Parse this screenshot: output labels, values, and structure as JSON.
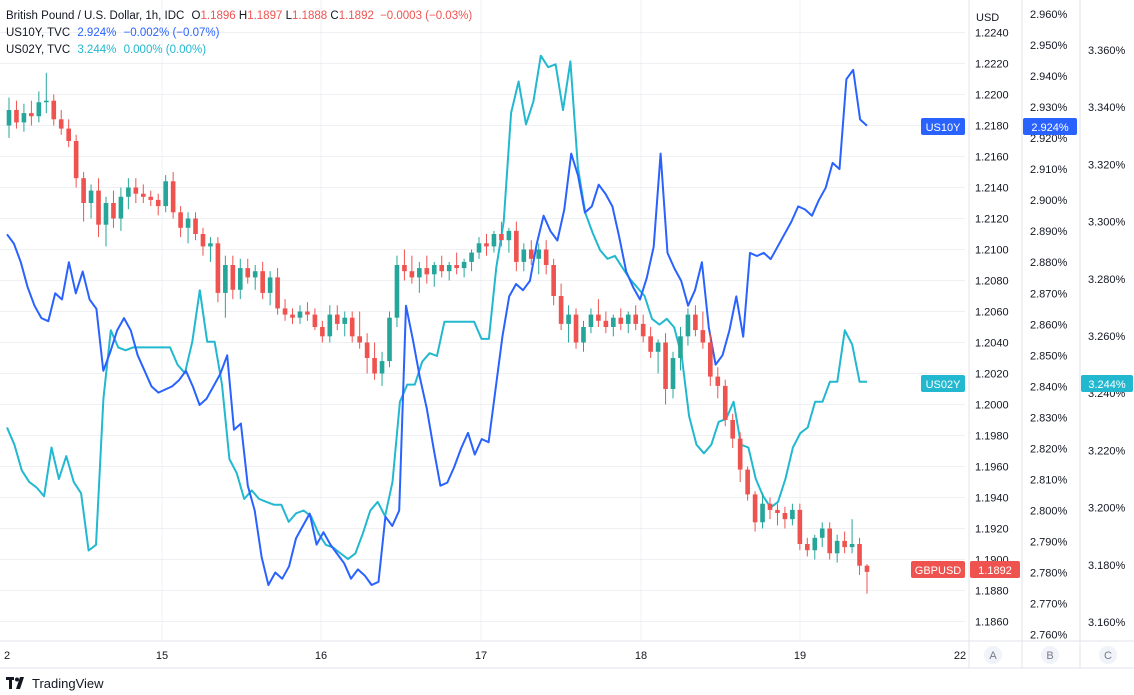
{
  "legend": {
    "pair": {
      "name": "British Pound / U.S. Dollar, 1h, IDC",
      "o_label": "O",
      "o": "1.1896",
      "h_label": "H",
      "h": "1.1897",
      "l_label": "L",
      "l": "1.1888",
      "c_label": "C",
      "c": "1.1892",
      "change": "−0.0003 (−0.03%)"
    },
    "us10": {
      "name": "US10Y, TVC",
      "value": "2.924%",
      "change": "−0.002% (−0.07%)"
    },
    "us02": {
      "name": "US02Y, TVC",
      "value": "3.244%",
      "change": "0.000% (0.00%)"
    }
  },
  "axes": {
    "currency_label": "USD",
    "scale_labels": [
      "A",
      "B",
      "C"
    ],
    "x_ticks": [
      "2",
      "15",
      "16",
      "17",
      "18",
      "19",
      "22"
    ],
    "price_ticks": [
      "1.2240",
      "1.2220",
      "1.2200",
      "1.2180",
      "1.2160",
      "1.2140",
      "1.2120",
      "1.2100",
      "1.2080",
      "1.2060",
      "1.2040",
      "1.2020",
      "1.2000",
      "1.1980",
      "1.1960",
      "1.1940",
      "1.1920",
      "1.1900",
      "1.1880",
      "1.1860"
    ],
    "us10_ticks": [
      "2.960%",
      "2.950%",
      "2.940%",
      "2.930%",
      "2.920%",
      "2.910%",
      "2.900%",
      "2.890%",
      "2.880%",
      "2.870%",
      "2.860%",
      "2.850%",
      "2.840%",
      "2.830%",
      "2.820%",
      "2.810%",
      "2.800%",
      "2.790%",
      "2.780%",
      "2.770%",
      "2.760%"
    ],
    "us02_ticks": [
      "3.360%",
      "3.340%",
      "3.320%",
      "3.300%",
      "3.280%",
      "3.260%",
      "3.240%",
      "3.220%",
      "3.200%",
      "3.180%",
      "3.160%"
    ]
  },
  "badges": {
    "us10_name": "US10Y",
    "us10_value": "2.924%",
    "us02_name": "US02Y",
    "us02_value": "3.244%",
    "gbp_name": "GBPUSD",
    "gbp_value": "1.1892"
  },
  "footer": {
    "brand": "TradingView"
  },
  "colors": {
    "up": "#26a69a",
    "down": "#ef5350",
    "us10": "#2962ff",
    "us02": "#22b8cf",
    "axis_text": "#131722",
    "grid": "#e0e3eb"
  },
  "chart_data": [
    {
      "type": "candlestick",
      "name": "GBPUSD",
      "interval": "1h",
      "x_range": [
        "Sep 14",
        "Sep 22"
      ],
      "ylim": [
        1.185,
        1.225
      ],
      "candles": [
        [
          1.218,
          1.2198,
          1.2172,
          1.219
        ],
        [
          1.219,
          1.2196,
          1.2178,
          1.2182
        ],
        [
          1.2182,
          1.2194,
          1.2176,
          1.2188
        ],
        [
          1.2188,
          1.2196,
          1.218,
          1.2186
        ],
        [
          1.2186,
          1.2202,
          1.2182,
          1.2195
        ],
        [
          1.2195,
          1.2214,
          1.2188,
          1.2196
        ],
        [
          1.2196,
          1.22,
          1.218,
          1.2184
        ],
        [
          1.2184,
          1.219,
          1.2174,
          1.2178
        ],
        [
          1.2178,
          1.2184,
          1.2166,
          1.217
        ],
        [
          1.217,
          1.2174,
          1.214,
          1.2146
        ],
        [
          1.2146,
          1.215,
          1.2118,
          1.213
        ],
        [
          1.213,
          1.2142,
          1.212,
          1.2138
        ],
        [
          1.2138,
          1.2146,
          1.2108,
          1.2116
        ],
        [
          1.2116,
          1.2134,
          1.2102,
          1.213
        ],
        [
          1.213,
          1.2138,
          1.2114,
          1.212
        ],
        [
          1.212,
          1.214,
          1.2112,
          1.2134
        ],
        [
          1.2134,
          1.2146,
          1.2126,
          1.214
        ],
        [
          1.214,
          1.2146,
          1.213,
          1.2136
        ],
        [
          1.2136,
          1.2142,
          1.213,
          1.2134
        ],
        [
          1.2134,
          1.2138,
          1.2128,
          1.2132
        ],
        [
          1.2132,
          1.2136,
          1.2122,
          1.2128
        ],
        [
          1.2128,
          1.2148,
          1.2124,
          1.2144
        ],
        [
          1.2144,
          1.215,
          1.212,
          1.2124
        ],
        [
          1.2124,
          1.2128,
          1.2108,
          1.2114
        ],
        [
          1.2114,
          1.2124,
          1.2104,
          1.212
        ],
        [
          1.212,
          1.2124,
          1.2106,
          1.211
        ],
        [
          1.211,
          1.2114,
          1.2096,
          1.2102
        ],
        [
          1.2102,
          1.2108,
          1.2092,
          1.2104
        ],
        [
          1.2104,
          1.2108,
          1.2066,
          1.2072
        ],
        [
          1.2072,
          1.2096,
          1.2056,
          1.209
        ],
        [
          1.209,
          1.2096,
          1.2068,
          1.2074
        ],
        [
          1.2074,
          1.2094,
          1.2068,
          1.2088
        ],
        [
          1.2088,
          1.2094,
          1.2078,
          1.2082
        ],
        [
          1.2082,
          1.209,
          1.2074,
          1.2086
        ],
        [
          1.2086,
          1.2092,
          1.2068,
          1.2072
        ],
        [
          1.2072,
          1.2086,
          1.2064,
          1.2082
        ],
        [
          1.2082,
          1.2088,
          1.2058,
          1.2062
        ],
        [
          1.2062,
          1.2068,
          1.2054,
          1.2058
        ],
        [
          1.2058,
          1.2062,
          1.2052,
          1.2056
        ],
        [
          1.2056,
          1.2064,
          1.2052,
          1.206
        ],
        [
          1.206,
          1.2066,
          1.2054,
          1.2058
        ],
        [
          1.2058,
          1.2062,
          1.2048,
          1.205
        ],
        [
          1.205,
          1.2054,
          1.204,
          1.2044
        ],
        [
          1.2044,
          1.2064,
          1.204,
          1.2058
        ],
        [
          1.2058,
          1.2064,
          1.2048,
          1.2052
        ],
        [
          1.2052,
          1.206,
          1.2044,
          1.2056
        ],
        [
          1.2056,
          1.206,
          1.204,
          1.2044
        ],
        [
          1.2044,
          1.206,
          1.2036,
          1.204
        ],
        [
          1.204,
          1.2046,
          1.202,
          1.203
        ],
        [
          1.203,
          1.204,
          1.2016,
          1.202
        ],
        [
          1.202,
          1.2034,
          1.2012,
          1.2028
        ],
        [
          1.2028,
          1.206,
          1.2024,
          1.2056
        ],
        [
          1.2056,
          1.2096,
          1.205,
          1.209
        ],
        [
          1.209,
          1.21,
          1.208,
          1.2086
        ],
        [
          1.2086,
          1.2096,
          1.2078,
          1.2082
        ],
        [
          1.2082,
          1.2092,
          1.2072,
          1.2088
        ],
        [
          1.2088,
          1.2096,
          1.2078,
          1.2084
        ],
        [
          1.2084,
          1.2092,
          1.2076,
          1.209
        ],
        [
          1.209,
          1.2096,
          1.2082,
          1.2086
        ],
        [
          1.2086,
          1.2092,
          1.208,
          1.209
        ],
        [
          1.209,
          1.2098,
          1.2084,
          1.2088
        ],
        [
          1.2088,
          1.2094,
          1.2082,
          1.2092
        ],
        [
          1.2092,
          1.21,
          1.2086,
          1.2098
        ],
        [
          1.2098,
          1.2108,
          1.2094,
          1.2104
        ],
        [
          1.2104,
          1.211,
          1.2096,
          1.2102
        ],
        [
          1.2102,
          1.2112,
          1.2098,
          1.211
        ],
        [
          1.211,
          1.2118,
          1.2102,
          1.2106
        ],
        [
          1.2106,
          1.2114,
          1.2098,
          1.2112
        ],
        [
          1.2112,
          1.2118,
          1.2086,
          1.2092
        ],
        [
          1.2092,
          1.2104,
          1.2086,
          1.21
        ],
        [
          1.21,
          1.2106,
          1.209,
          1.2094
        ],
        [
          1.2094,
          1.2104,
          1.2084,
          1.21
        ],
        [
          1.21,
          1.2106,
          1.2084,
          1.209
        ],
        [
          1.209,
          1.2094,
          1.2064,
          1.207
        ],
        [
          1.207,
          1.2078,
          1.2048,
          1.2052
        ],
        [
          1.2052,
          1.2064,
          1.204,
          1.2058
        ],
        [
          1.2058,
          1.2062,
          1.2036,
          1.204
        ],
        [
          1.204,
          1.2054,
          1.2034,
          1.205
        ],
        [
          1.205,
          1.2062,
          1.2046,
          1.2058
        ],
        [
          1.2058,
          1.2068,
          1.205,
          1.2054
        ],
        [
          1.2054,
          1.206,
          1.2046,
          1.205
        ],
        [
          1.205,
          1.2058,
          1.2044,
          1.2056
        ],
        [
          1.2056,
          1.2062,
          1.2048,
          1.2052
        ],
        [
          1.2052,
          1.206,
          1.2046,
          1.2058
        ],
        [
          1.2058,
          1.2064,
          1.2048,
          1.2052
        ],
        [
          1.2052,
          1.2058,
          1.204,
          1.2044
        ],
        [
          1.2044,
          1.205,
          1.203,
          1.2034
        ],
        [
          1.2034,
          1.2042,
          1.202,
          1.204
        ],
        [
          1.204,
          1.2046,
          1.2,
          1.201
        ],
        [
          1.201,
          1.2034,
          1.2004,
          1.203
        ],
        [
          1.203,
          1.205,
          1.2022,
          1.2044
        ],
        [
          1.2044,
          1.2062,
          1.2038,
          1.2058
        ],
        [
          1.2058,
          1.2064,
          1.2044,
          1.2048
        ],
        [
          1.2048,
          1.206,
          1.2036,
          1.204
        ],
        [
          1.204,
          1.2046,
          1.2012,
          1.2018
        ],
        [
          1.2018,
          1.2024,
          1.2004,
          1.2012
        ],
        [
          1.2012,
          1.2016,
          1.1986,
          1.199
        ],
        [
          1.199,
          1.1994,
          1.1972,
          1.1978
        ],
        [
          1.1978,
          1.1982,
          1.195,
          1.1958
        ],
        [
          1.1958,
          1.196,
          1.1938,
          1.1942
        ],
        [
          1.1942,
          1.1944,
          1.1918,
          1.1924
        ],
        [
          1.1924,
          1.1942,
          1.192,
          1.1936
        ],
        [
          1.1936,
          1.194,
          1.1926,
          1.1932
        ],
        [
          1.1932,
          1.1936,
          1.1922,
          1.193
        ],
        [
          1.193,
          1.1934,
          1.192,
          1.1926
        ],
        [
          1.1926,
          1.1936,
          1.1922,
          1.1932
        ],
        [
          1.1932,
          1.1936,
          1.1906,
          1.191
        ],
        [
          1.191,
          1.1914,
          1.1902,
          1.1906
        ],
        [
          1.1906,
          1.1916,
          1.19,
          1.1914
        ],
        [
          1.1914,
          1.1924,
          1.1908,
          1.192
        ],
        [
          1.192,
          1.1924,
          1.19,
          1.1904
        ],
        [
          1.1904,
          1.1916,
          1.1898,
          1.1912
        ],
        [
          1.1912,
          1.1918,
          1.1904,
          1.1908
        ],
        [
          1.1908,
          1.1926,
          1.1904,
          1.191
        ],
        [
          1.191,
          1.1914,
          1.189,
          1.1896
        ],
        [
          1.1896,
          1.1897,
          1.1878,
          1.1892
        ]
      ]
    },
    {
      "type": "line",
      "name": "US10Y",
      "ylim": [
        2.758,
        2.962
      ],
      "values": [
        2.889,
        2.886,
        2.88,
        2.872,
        2.866,
        2.862,
        2.861,
        2.87,
        2.868,
        2.88,
        2.87,
        2.877,
        2.868,
        2.865,
        2.845,
        2.851,
        2.858,
        2.862,
        2.858,
        2.85,
        2.845,
        2.84,
        2.838,
        2.839,
        2.84,
        2.842,
        2.845,
        2.84,
        2.834,
        2.836,
        2.84,
        2.844,
        2.85,
        2.826,
        2.828,
        2.808,
        2.8,
        2.785,
        2.776,
        2.78,
        2.778,
        2.782,
        2.791,
        2.795,
        2.799,
        2.789,
        2.793,
        2.789,
        2.786,
        2.783,
        2.778,
        2.781,
        2.779,
        2.776,
        2.777,
        2.798,
        2.795,
        2.8,
        2.866,
        2.855,
        2.843,
        2.833,
        2.82,
        2.808,
        2.809,
        2.814,
        2.82,
        2.825,
        2.818,
        2.823,
        2.822,
        2.839,
        2.856,
        2.869,
        2.873,
        2.871,
        2.874,
        2.886,
        2.895,
        2.89,
        2.887,
        2.897,
        2.915,
        2.908,
        2.896,
        2.898,
        2.905,
        2.902,
        2.898,
        2.888,
        2.877,
        2.872,
        2.868,
        2.875,
        2.885,
        2.915,
        2.883,
        2.878,
        2.874,
        2.866,
        2.871,
        2.88,
        2.859,
        2.847,
        2.85,
        2.858,
        2.869,
        2.856,
        2.883,
        2.882,
        2.883,
        2.881,
        2.885,
        2.889,
        2.893,
        2.898,
        2.897,
        2.895,
        2.9,
        2.904,
        2.912,
        2.91,
        2.939,
        2.942,
        2.926,
        2.924
      ]
    },
    {
      "type": "line",
      "name": "US02Y",
      "ylim": [
        3.155,
        3.372
      ],
      "values": [
        3.228,
        3.222,
        3.213,
        3.209,
        3.207,
        3.204,
        3.221,
        3.21,
        3.218,
        3.209,
        3.205,
        3.185,
        3.187,
        3.238,
        3.262,
        3.256,
        3.255,
        3.256,
        3.256,
        3.256,
        3.256,
        3.256,
        3.256,
        3.25,
        3.247,
        3.258,
        3.276,
        3.258,
        3.258,
        3.243,
        3.217,
        3.212,
        3.203,
        3.206,
        3.203,
        3.202,
        3.201,
        3.201,
        3.195,
        3.198,
        3.199,
        3.197,
        3.191,
        3.187,
        3.186,
        3.184,
        3.182,
        3.184,
        3.191,
        3.199,
        3.202,
        3.197,
        3.209,
        3.237,
        3.243,
        3.243,
        3.251,
        3.254,
        3.253,
        3.265,
        3.265,
        3.265,
        3.265,
        3.265,
        3.259,
        3.259,
        3.284,
        3.3,
        3.338,
        3.349,
        3.334,
        3.342,
        3.358,
        3.354,
        3.355,
        3.339,
        3.356,
        3.319,
        3.303,
        3.296,
        3.29,
        3.287,
        3.288,
        3.284,
        3.28,
        3.277,
        3.274,
        3.266,
        3.264,
        3.266,
        3.263,
        3.253,
        3.232,
        3.222,
        3.219,
        3.222,
        3.23,
        3.231,
        3.237,
        3.222,
        3.221,
        3.21,
        3.204,
        3.2,
        3.202,
        3.21,
        3.221,
        3.226,
        3.228,
        3.237,
        3.237,
        3.244,
        3.244,
        3.262,
        3.257,
        3.244,
        3.244
      ]
    }
  ]
}
